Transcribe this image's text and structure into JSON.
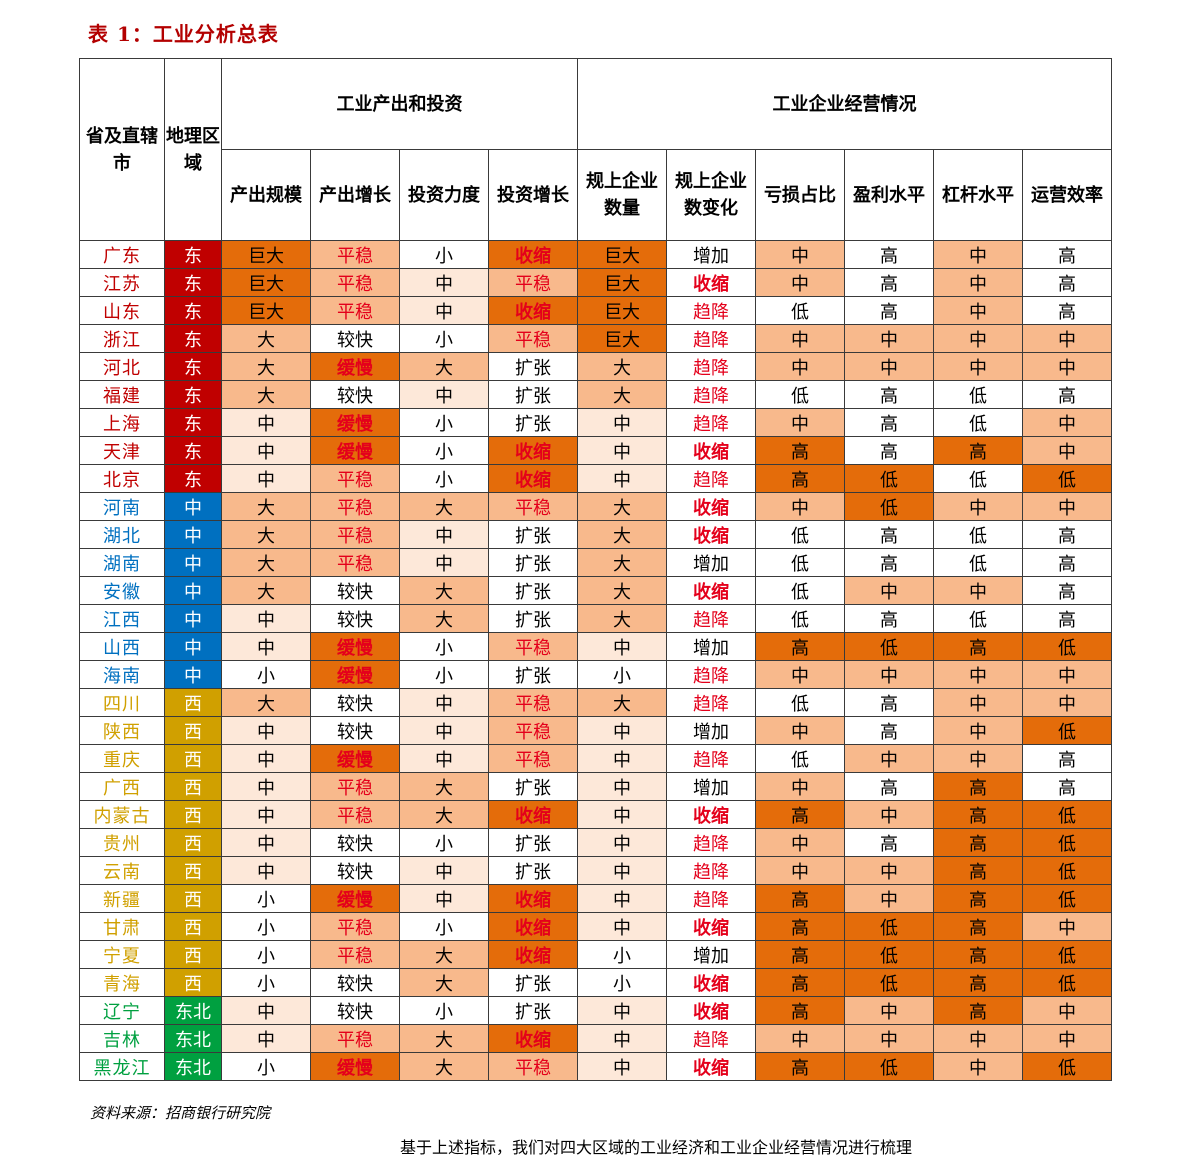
{
  "title": "表 1：工业分析总表",
  "source": "资料来源：招商银行研究院",
  "cut_text": "基于上述指标，我们对四大区域的工业经济和工业企业经营情况进行梳理",
  "colors": {
    "region_east": "#c00000",
    "region_central": "#0070c0",
    "region_west": "#d0a000",
    "region_northeast": "#00a040",
    "fill_dark": "#e46c0a",
    "fill_mid": "#f8b98c",
    "fill_light": "#fde8d9",
    "text_red": "#e4001b"
  },
  "headers": {
    "province": "省及直辖市",
    "region": "地理区域",
    "group1": "工业产出和投资",
    "group2": "工业企业经营情况",
    "columns": [
      "产出规模",
      "产出增长",
      "投资力度",
      "投资增长",
      "规上企业数量",
      "规上企业数变化",
      "亏损占比",
      "盈利水平",
      "杠杆水平",
      "运营效率"
    ]
  },
  "rows": [
    {
      "p": "广东",
      "r": "东",
      "v": [
        "巨大",
        "平稳",
        "小",
        "收缩",
        "巨大",
        "增加",
        "中",
        "高",
        "中",
        "高"
      ]
    },
    {
      "p": "江苏",
      "r": "东",
      "v": [
        "巨大",
        "平稳",
        "中",
        "平稳",
        "巨大",
        "收缩",
        "中",
        "高",
        "中",
        "高"
      ]
    },
    {
      "p": "山东",
      "r": "东",
      "v": [
        "巨大",
        "平稳",
        "中",
        "收缩",
        "巨大",
        "趋降",
        "低",
        "高",
        "中",
        "高"
      ]
    },
    {
      "p": "浙江",
      "r": "东",
      "v": [
        "大",
        "较快",
        "小",
        "平稳",
        "巨大",
        "趋降",
        "中",
        "中",
        "中",
        "中"
      ]
    },
    {
      "p": "河北",
      "r": "东",
      "v": [
        "大",
        "缓慢",
        "大",
        "扩张",
        "大",
        "趋降",
        "中",
        "中",
        "中",
        "中"
      ]
    },
    {
      "p": "福建",
      "r": "东",
      "v": [
        "大",
        "较快",
        "中",
        "扩张",
        "大",
        "趋降",
        "低",
        "高",
        "低",
        "高"
      ]
    },
    {
      "p": "上海",
      "r": "东",
      "v": [
        "中",
        "缓慢",
        "小",
        "扩张",
        "中",
        "趋降",
        "中",
        "高",
        "低",
        "中"
      ]
    },
    {
      "p": "天津",
      "r": "东",
      "v": [
        "中",
        "缓慢",
        "小",
        "收缩",
        "中",
        "收缩",
        "高",
        "高",
        "高",
        "中"
      ]
    },
    {
      "p": "北京",
      "r": "东",
      "v": [
        "中",
        "平稳",
        "小",
        "收缩",
        "中",
        "趋降",
        "高",
        "低",
        "低",
        "低"
      ]
    },
    {
      "p": "河南",
      "r": "中",
      "v": [
        "大",
        "平稳",
        "大",
        "平稳",
        "大",
        "收缩",
        "中",
        "低",
        "中",
        "中"
      ]
    },
    {
      "p": "湖北",
      "r": "中",
      "v": [
        "大",
        "平稳",
        "中",
        "扩张",
        "大",
        "收缩",
        "低",
        "高",
        "低",
        "高"
      ]
    },
    {
      "p": "湖南",
      "r": "中",
      "v": [
        "大",
        "平稳",
        "中",
        "扩张",
        "大",
        "增加",
        "低",
        "高",
        "低",
        "高"
      ]
    },
    {
      "p": "安徽",
      "r": "中",
      "v": [
        "大",
        "较快",
        "大",
        "扩张",
        "大",
        "收缩",
        "低",
        "中",
        "中",
        "高"
      ]
    },
    {
      "p": "江西",
      "r": "中",
      "v": [
        "中",
        "较快",
        "大",
        "扩张",
        "大",
        "趋降",
        "低",
        "高",
        "低",
        "高"
      ]
    },
    {
      "p": "山西",
      "r": "中",
      "v": [
        "中",
        "缓慢",
        "小",
        "平稳",
        "中",
        "增加",
        "高",
        "低",
        "高",
        "低"
      ]
    },
    {
      "p": "海南",
      "r": "中",
      "v": [
        "小",
        "缓慢",
        "小",
        "扩张",
        "小",
        "趋降",
        "中",
        "中",
        "中",
        "中"
      ]
    },
    {
      "p": "四川",
      "r": "西",
      "v": [
        "大",
        "较快",
        "中",
        "平稳",
        "大",
        "趋降",
        "低",
        "高",
        "中",
        "中"
      ]
    },
    {
      "p": "陕西",
      "r": "西",
      "v": [
        "中",
        "较快",
        "中",
        "平稳",
        "中",
        "增加",
        "中",
        "高",
        "中",
        "低"
      ]
    },
    {
      "p": "重庆",
      "r": "西",
      "v": [
        "中",
        "缓慢",
        "中",
        "平稳",
        "中",
        "趋降",
        "低",
        "中",
        "中",
        "高"
      ]
    },
    {
      "p": "广西",
      "r": "西",
      "v": [
        "中",
        "平稳",
        "大",
        "扩张",
        "中",
        "增加",
        "中",
        "高",
        "高",
        "高"
      ]
    },
    {
      "p": "内蒙古",
      "r": "西",
      "v": [
        "中",
        "平稳",
        "大",
        "收缩",
        "中",
        "收缩",
        "高",
        "中",
        "高",
        "低"
      ]
    },
    {
      "p": "贵州",
      "r": "西",
      "v": [
        "中",
        "较快",
        "小",
        "扩张",
        "中",
        "趋降",
        "中",
        "高",
        "高",
        "低"
      ]
    },
    {
      "p": "云南",
      "r": "西",
      "v": [
        "中",
        "较快",
        "中",
        "扩张",
        "中",
        "趋降",
        "中",
        "中",
        "高",
        "低"
      ]
    },
    {
      "p": "新疆",
      "r": "西",
      "v": [
        "小",
        "缓慢",
        "中",
        "收缩",
        "中",
        "趋降",
        "高",
        "中",
        "高",
        "低"
      ]
    },
    {
      "p": "甘肃",
      "r": "西",
      "v": [
        "小",
        "平稳",
        "小",
        "收缩",
        "中",
        "收缩",
        "高",
        "低",
        "高",
        "中"
      ]
    },
    {
      "p": "宁夏",
      "r": "西",
      "v": [
        "小",
        "平稳",
        "大",
        "收缩",
        "小",
        "增加",
        "高",
        "低",
        "高",
        "低"
      ]
    },
    {
      "p": "青海",
      "r": "西",
      "v": [
        "小",
        "较快",
        "大",
        "扩张",
        "小",
        "收缩",
        "高",
        "低",
        "高",
        "低"
      ]
    },
    {
      "p": "辽宁",
      "r": "东北",
      "v": [
        "中",
        "较快",
        "小",
        "扩张",
        "中",
        "收缩",
        "高",
        "中",
        "高",
        "中"
      ]
    },
    {
      "p": "吉林",
      "r": "东北",
      "v": [
        "中",
        "平稳",
        "大",
        "收缩",
        "中",
        "趋降",
        "中",
        "中",
        "中",
        "中"
      ]
    },
    {
      "p": "黑龙江",
      "r": "东北",
      "v": [
        "小",
        "缓慢",
        "大",
        "平稳",
        "中",
        "收缩",
        "高",
        "低",
        "中",
        "低"
      ]
    }
  ]
}
